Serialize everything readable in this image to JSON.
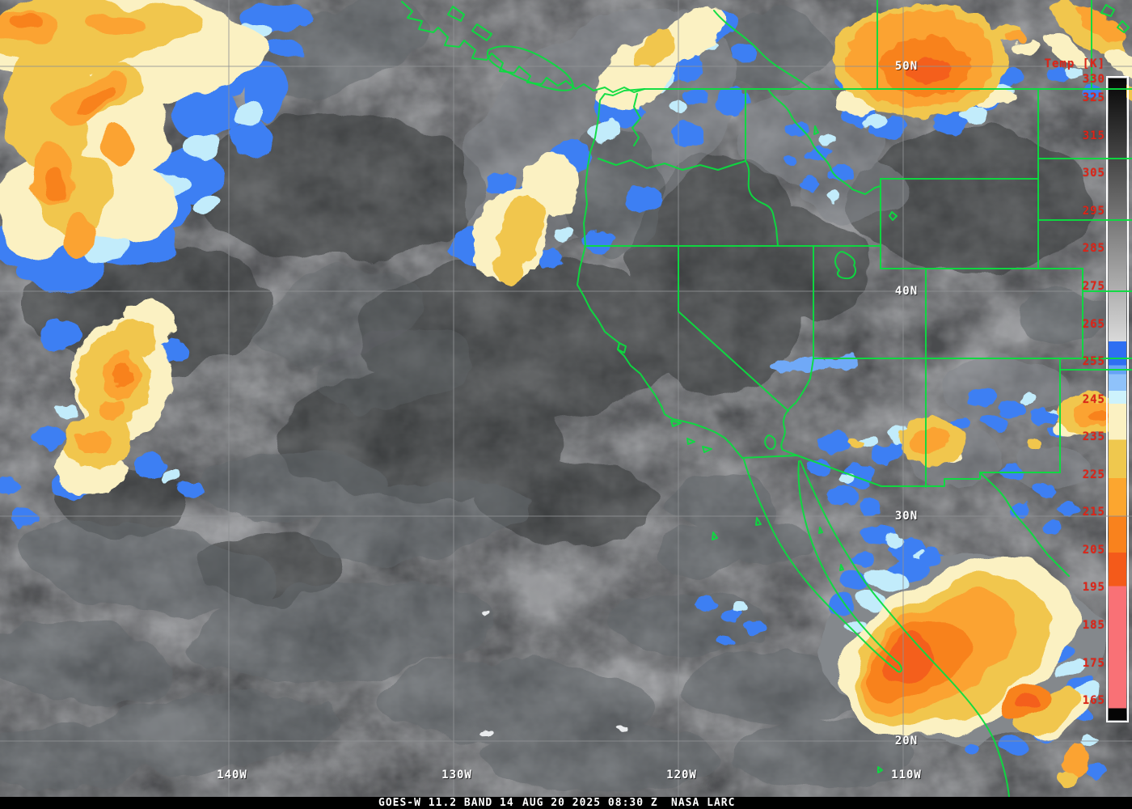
{
  "caption": {
    "segments": [
      "GOES-W 11.2 BAND 14",
      "AUG 20 2025 08:30 Z",
      "NASA LARC"
    ],
    "full_text": "GOES-W 11.2 BAND 14    AUG 20 2025 08:30 Z    NASA LARC"
  },
  "graticule": {
    "latitude_labels": [
      "50N",
      "40N",
      "30N",
      "20N"
    ],
    "longitude_labels": [
      "140W",
      "130W",
      "120W",
      "110W"
    ]
  },
  "colorbar": {
    "title": "Temp [K]",
    "tick_values": [
      330,
      325,
      315,
      305,
      295,
      285,
      275,
      265,
      255,
      245,
      235,
      225,
      215,
      205,
      195,
      185,
      175,
      165
    ],
    "gradient_stops": [
      [
        0.0,
        "#060606"
      ],
      [
        0.41,
        "#D9D9D9"
      ],
      [
        0.41,
        "#2E6FF2"
      ],
      [
        0.447,
        "#2E6FF2"
      ],
      [
        0.447,
        "#66A3F6"
      ],
      [
        0.461,
        "#66A3F6"
      ],
      [
        0.461,
        "#8FC2FA"
      ],
      [
        0.487,
        "#8FC2FA"
      ],
      [
        0.487,
        "#CDF2FC"
      ],
      [
        0.507,
        "#CDF2FC"
      ],
      [
        0.507,
        "#FBF1C2"
      ],
      [
        0.563,
        "#FBF1C2"
      ],
      [
        0.563,
        "#EFC84E"
      ],
      [
        0.623,
        "#EFC84E"
      ],
      [
        0.623,
        "#FCA62F"
      ],
      [
        0.682,
        "#FCA62F"
      ],
      [
        0.682,
        "#F9821D"
      ],
      [
        0.739,
        "#F9821D"
      ],
      [
        0.739,
        "#F45A1A"
      ],
      [
        0.791,
        "#F45A1A"
      ],
      [
        0.791,
        "#F97176"
      ],
      [
        0.982,
        "#F97176"
      ],
      [
        0.982,
        "#050505"
      ],
      [
        1.0,
        "#050505"
      ]
    ],
    "text_color": "#DE2518",
    "border_color": "#FFFFFF"
  },
  "colors": {
    "map_border_green": "#0BDC3F",
    "graticule_gray": "#8F9193",
    "label_white": "#FFFFFF",
    "enhancement": {
      "blue": "#3D7FF3",
      "cyan": "#C2ECFB",
      "cream": "#FBF1C2",
      "gold": "#F1C64D",
      "orange": "#FBA333",
      "deep_orange": "#F8821E",
      "orange_red": "#F45E1B",
      "pink": "#F97176"
    }
  }
}
